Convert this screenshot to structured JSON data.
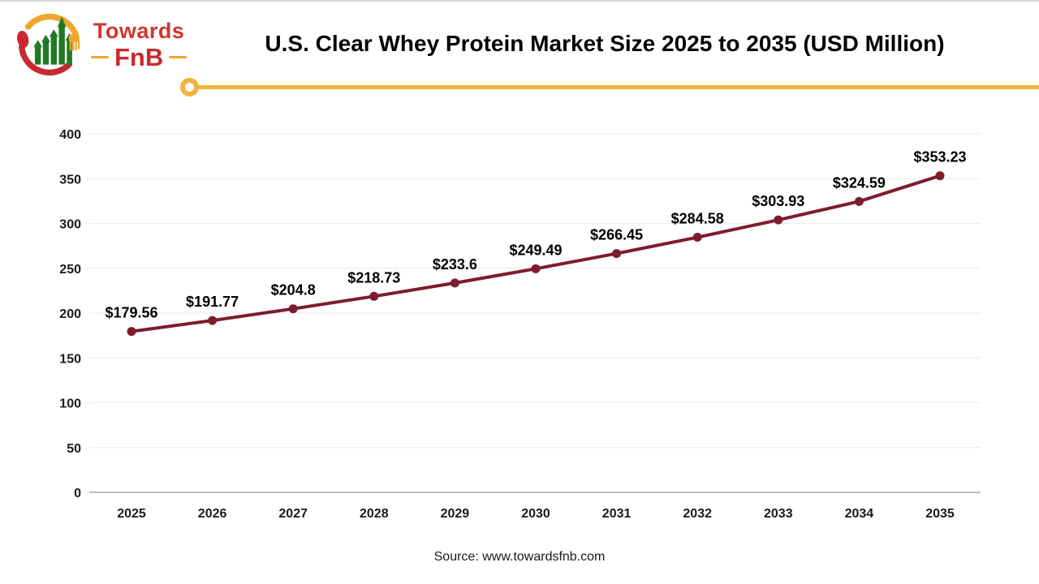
{
  "logo": {
    "brand_top": "Towards",
    "brand_bottom": "FnB",
    "colors": {
      "red": "#c9292e",
      "orange_red": "#d0362b",
      "yellow": "#f0a72f",
      "green": "#1f7a23"
    }
  },
  "header": {
    "title": "U.S. Clear Whey Protein Market Size 2025 to 2035 (USD Million)"
  },
  "divider": {
    "color": "#f0b43c"
  },
  "chart_data": {
    "type": "line",
    "title": "U.S. Clear Whey Protein Market Size 2025 to 2035 (USD Million)",
    "categories": [
      "2025",
      "2026",
      "2027",
      "2028",
      "2029",
      "2030",
      "2031",
      "2032",
      "2033",
      "2034",
      "2035"
    ],
    "values": [
      179.56,
      191.77,
      204.8,
      218.73,
      233.6,
      249.49,
      266.45,
      284.58,
      303.93,
      324.59,
      353.23
    ],
    "data_labels": [
      "$179.56",
      "$191.77",
      "$204.8",
      "$218.73",
      "$233.6",
      "$249.49",
      "$266.45",
      "$284.58",
      "$303.93",
      "$324.59",
      "$353.23"
    ],
    "xlabel": "",
    "ylabel": "",
    "ylim": [
      0,
      400
    ],
    "yticks": [
      0,
      50,
      100,
      150,
      200,
      250,
      300,
      350,
      400
    ],
    "grid": true,
    "legend": "none",
    "line_color": "#7d1c2d",
    "marker": "circle",
    "grid_color": "#eaeaea",
    "axis_color": "#bfbfbf",
    "tick_label_color": "#1a1a1a",
    "data_label_color": "#000000"
  },
  "footer": {
    "source": "Source: www.towardsfnb.com"
  }
}
